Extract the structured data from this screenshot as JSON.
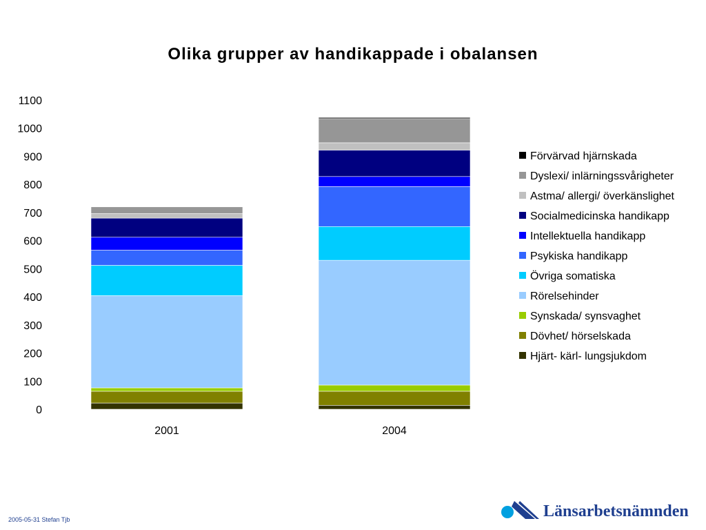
{
  "chart_data": {
    "type": "bar",
    "stacked": true,
    "title": "Olika grupper av handikappade i obalansen",
    "categories": [
      "2001",
      "2004"
    ],
    "ylim": [
      0,
      1100
    ],
    "yticks": [
      0,
      100,
      200,
      300,
      400,
      500,
      600,
      700,
      800,
      900,
      1000,
      1100
    ],
    "grid": false,
    "legend_position": "right",
    "series": [
      {
        "name": "Hjärt- kärl- lungsjukdom",
        "color": "#333300",
        "values": [
          22,
          14
        ]
      },
      {
        "name": "Dövhet/ hörselskada",
        "color": "#808000",
        "values": [
          42,
          50
        ]
      },
      {
        "name": "Synskada/ synsvaghet",
        "color": "#99cc00",
        "values": [
          12,
          22
        ]
      },
      {
        "name": "Rörelsehinder",
        "color": "#99ccff",
        "values": [
          328,
          444
        ]
      },
      {
        "name": "Övriga somatiska",
        "color": "#00ccff",
        "values": [
          108,
          120
        ]
      },
      {
        "name": "Psykiska handikapp",
        "color": "#3366ff",
        "values": [
          54,
          142
        ]
      },
      {
        "name": "Intellektuella handikapp",
        "color": "#0000ff",
        "values": [
          46,
          36
        ]
      },
      {
        "name": "Socialmedicinska handikapp",
        "color": "#000080",
        "values": [
          68,
          94
        ]
      },
      {
        "name": "Astma/ allergi/ överkänslighet",
        "color": "#c0c0c0",
        "values": [
          16,
          26
        ]
      },
      {
        "name": "Dyslexi/ inlärningssvårigheter",
        "color": "#969696",
        "values": [
          24,
          86
        ]
      },
      {
        "name": "Förvärvad hjärnskada",
        "color": "#000000",
        "values": [
          0,
          4
        ]
      }
    ]
  },
  "footer": {
    "text": "2005-05-31 Stefan Tjb"
  },
  "logo": {
    "text": "Länsarbetsnämnden",
    "color": "#1f3f8f",
    "accent": "#00a0e0"
  }
}
